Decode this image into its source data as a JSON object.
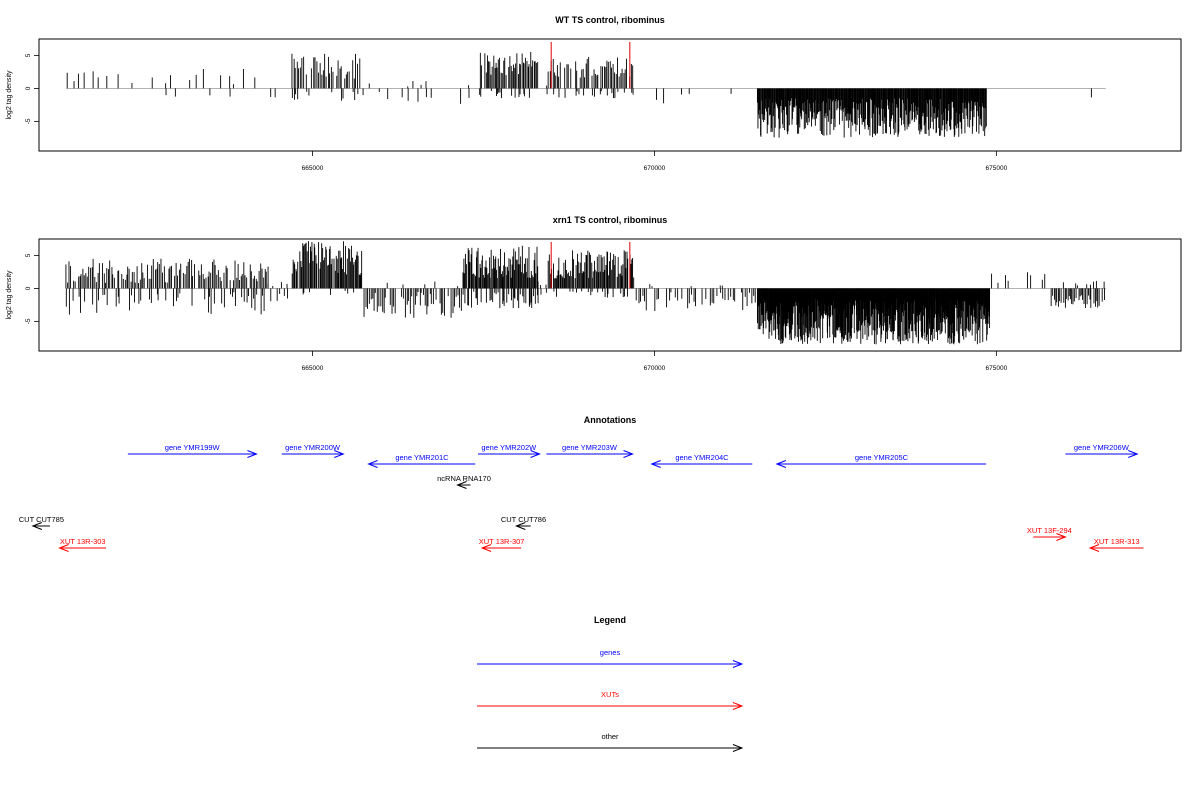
{
  "chart_data": [
    {
      "type": "bar",
      "title": "WT TS control, ribominus",
      "ylabel": "log2 tag density",
      "xlim": [
        661000,
        677700
      ],
      "ylim": [
        -9.5,
        7.5
      ],
      "x_ticks": [
        {
          "value": 665000,
          "label": "665000"
        },
        {
          "value": 670000,
          "label": "670000"
        },
        {
          "value": 675000,
          "label": "675000"
        }
      ],
      "y_ticks": [
        {
          "value": -5,
          "label": "-5"
        },
        {
          "value": 0,
          "label": "0"
        },
        {
          "value": 5,
          "label": "5"
        }
      ],
      "marker_lines": [
        668490,
        669640
      ],
      "marker_color": "#e00000",
      "baseline_range": [
        661400,
        676600
      ],
      "regions": [
        {
          "start": 661400,
          "end": 664350,
          "step": 95,
          "pos": [
            0.5,
            3
          ],
          "neg": [
            -0.3,
            -1.5
          ],
          "pos_prob": 0.55,
          "neg_prob": 0.12
        },
        {
          "start": 664350,
          "end": 664700,
          "step": 120,
          "pos": [
            0.2,
            1
          ],
          "neg": [
            -0.5,
            -1.5
          ],
          "pos_prob": 0.2,
          "neg_prob": 0.3
        },
        {
          "start": 664700,
          "end": 665750,
          "step": 24,
          "pos": [
            1.5,
            5.5
          ],
          "neg": [
            -0.5,
            -2
          ],
          "pos_prob": 0.92,
          "neg_prob": 0.3
        },
        {
          "start": 665750,
          "end": 667450,
          "step": 70,
          "pos": [
            0.3,
            1.2
          ],
          "neg": [
            -0.5,
            -2.5
          ],
          "pos_prob": 0.2,
          "neg_prob": 0.45
        },
        {
          "start": 667450,
          "end": 668300,
          "step": 18,
          "pos": [
            2,
            5.8
          ],
          "neg": [
            -0.3,
            -1.5
          ],
          "pos_prob": 0.95,
          "neg_prob": 0.2
        },
        {
          "start": 668300,
          "end": 668450,
          "step": 60,
          "pos": [
            0.3,
            1
          ],
          "neg": [
            -0.5,
            -1
          ],
          "pos_prob": 0.3,
          "neg_prob": 0.2
        },
        {
          "start": 668450,
          "end": 669700,
          "step": 22,
          "pos": [
            1.5,
            4.8
          ],
          "neg": [
            -0.3,
            -1.5
          ],
          "pos_prob": 0.92,
          "neg_prob": 0.25
        },
        {
          "start": 669700,
          "end": 671500,
          "step": 110,
          "pos": [
            0.2,
            0.8
          ],
          "neg": [
            -0.5,
            -2.5
          ],
          "pos_prob": 0.05,
          "neg_prob": 0.25
        },
        {
          "start": 671500,
          "end": 674850,
          "step": 9,
          "pos": [
            0,
            0
          ],
          "neg": [
            -1.5,
            -7.5
          ],
          "pos_prob": 0,
          "neg_prob": 1
        },
        {
          "start": 674850,
          "end": 676600,
          "step": 110,
          "pos": [
            0.5,
            1.8
          ],
          "neg": [
            -0.5,
            -2.5
          ],
          "pos_prob": 0.1,
          "neg_prob": 0.12
        }
      ]
    },
    {
      "type": "bar",
      "title": "xrn1 TS control, ribominus",
      "ylabel": "log2 tag density",
      "xlim": [
        661000,
        677700
      ],
      "ylim": [
        -9.5,
        7.5
      ],
      "x_ticks": [
        {
          "value": 665000,
          "label": "665000"
        },
        {
          "value": 670000,
          "label": "670000"
        },
        {
          "value": 675000,
          "label": "675000"
        }
      ],
      "y_ticks": [
        {
          "value": -5,
          "label": "-5"
        },
        {
          "value": 0,
          "label": "0"
        },
        {
          "value": 5,
          "label": "5"
        }
      ],
      "marker_lines": [
        668490,
        669640
      ],
      "marker_color": "#e00000",
      "baseline_range": [
        661400,
        676600
      ],
      "regions": [
        {
          "start": 661400,
          "end": 664350,
          "step": 22,
          "pos": [
            0.8,
            4.5
          ],
          "neg": [
            -0.5,
            -4
          ],
          "pos_prob": 0.85,
          "neg_prob": 0.35
        },
        {
          "start": 664350,
          "end": 664700,
          "step": 40,
          "pos": [
            0.3,
            1.5
          ],
          "neg": [
            -0.5,
            -2
          ],
          "pos_prob": 0.4,
          "neg_prob": 0.4
        },
        {
          "start": 664700,
          "end": 665750,
          "step": 14,
          "pos": [
            2,
            7.2
          ],
          "neg": [
            -0.3,
            -1
          ],
          "pos_prob": 0.95,
          "neg_prob": 0.15
        },
        {
          "start": 665750,
          "end": 667200,
          "step": 24,
          "pos": [
            0.3,
            1.5
          ],
          "neg": [
            -0.5,
            -4.5
          ],
          "pos_prob": 0.12,
          "neg_prob": 0.85
        },
        {
          "start": 667200,
          "end": 668300,
          "step": 13,
          "pos": [
            1.5,
            6.5
          ],
          "neg": [
            -0.5,
            -3
          ],
          "pos_prob": 0.95,
          "neg_prob": 0.45
        },
        {
          "start": 668300,
          "end": 668450,
          "step": 40,
          "pos": [
            0.3,
            1.2
          ],
          "neg": [
            -0.5,
            -1
          ],
          "pos_prob": 0.4,
          "neg_prob": 0.3
        },
        {
          "start": 668450,
          "end": 669700,
          "step": 14,
          "pos": [
            1.5,
            5.8
          ],
          "neg": [
            -0.3,
            -1.5
          ],
          "pos_prob": 0.95,
          "neg_prob": 0.3
        },
        {
          "start": 669700,
          "end": 671500,
          "step": 30,
          "pos": [
            0.2,
            0.8
          ],
          "neg": [
            -0.5,
            -3.5
          ],
          "pos_prob": 0.05,
          "neg_prob": 0.65
        },
        {
          "start": 671500,
          "end": 674900,
          "step": 6,
          "pos": [
            0,
            0
          ],
          "neg": [
            -1.5,
            -8.5
          ],
          "pos_prob": 0,
          "neg_prob": 1
        },
        {
          "start": 674900,
          "end": 675800,
          "step": 40,
          "pos": [
            0.5,
            2.5
          ],
          "neg": [
            -0.5,
            -1
          ],
          "pos_prob": 0.45,
          "neg_prob": 0.1
        },
        {
          "start": 675800,
          "end": 676600,
          "step": 20,
          "pos": [
            0.3,
            1.2
          ],
          "neg": [
            -1,
            -3
          ],
          "pos_prob": 0.2,
          "neg_prob": 0.85
        }
      ]
    }
  ],
  "annotations": {
    "title": "Annotations",
    "xlim": [
      661000,
      677700
    ],
    "features": [
      {
        "label": "gene YMR199W",
        "start": 662300,
        "end": 664180,
        "strand": "+",
        "row": 0,
        "color": "#0000ff"
      },
      {
        "label": "gene YMR200W",
        "start": 664550,
        "end": 665450,
        "strand": "+",
        "row": 0,
        "color": "#0000ff"
      },
      {
        "label": "gene YMR201C",
        "start": 665820,
        "end": 667380,
        "strand": "-",
        "row": 1,
        "color": "#0000ff"
      },
      {
        "label": "gene YMR202W",
        "start": 667420,
        "end": 668320,
        "strand": "+",
        "row": 0,
        "color": "#0000ff"
      },
      {
        "label": "gene YMR203W",
        "start": 668420,
        "end": 669680,
        "strand": "+",
        "row": 0,
        "color": "#0000ff"
      },
      {
        "label": "gene YMR204C",
        "start": 669960,
        "end": 671430,
        "strand": "-",
        "row": 1,
        "color": "#0000ff"
      },
      {
        "label": "gene YMR205C",
        "start": 671790,
        "end": 674850,
        "strand": "-",
        "row": 1,
        "color": "#0000ff"
      },
      {
        "label": "gene YMR206W",
        "start": 676010,
        "end": 677060,
        "strand": "+",
        "row": 0,
        "color": "#0000ff"
      },
      {
        "label": "ncRNA RNA170",
        "start": 667120,
        "end": 667310,
        "strand": "-",
        "row": 2,
        "color": "#000000"
      },
      {
        "label": "CUT CUT785",
        "start": 660910,
        "end": 661160,
        "strand": "-",
        "row": 3,
        "color": "#000000"
      },
      {
        "label": "CUT CUT786",
        "start": 667980,
        "end": 668190,
        "strand": "-",
        "row": 3,
        "color": "#000000"
      },
      {
        "label": "XUT 13R-303",
        "start": 661300,
        "end": 661980,
        "strand": "-",
        "row": 4,
        "color": "#ff0000"
      },
      {
        "label": "XUT 13R-307",
        "start": 667480,
        "end": 668050,
        "strand": "-",
        "row": 4,
        "color": "#ff0000"
      },
      {
        "label": "XUT 13F-294",
        "start": 675540,
        "end": 676010,
        "strand": "+",
        "row": 3.6,
        "color": "#ff0000"
      },
      {
        "label": "XUT 13R-313",
        "start": 676370,
        "end": 677150,
        "strand": "-",
        "row": 4,
        "color": "#ff0000"
      }
    ]
  },
  "legend": {
    "title": "Legend",
    "items": [
      {
        "label": "genes",
        "color": "#0000ff"
      },
      {
        "label": "XUTs",
        "color": "#ff0000"
      },
      {
        "label": "other",
        "color": "#000000"
      }
    ]
  }
}
